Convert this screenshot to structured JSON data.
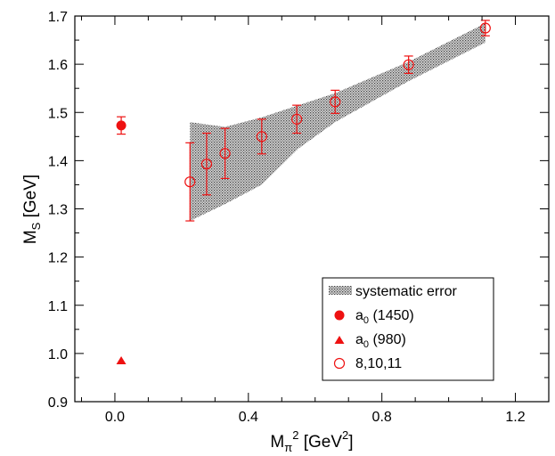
{
  "chart_data": {
    "type": "scatter",
    "xlabel": {
      "main": "M",
      "sub": "π",
      "sup": "2",
      "rest": " [GeV",
      "rest_sup": "2",
      "close": "]"
    },
    "ylabel": {
      "main": "M",
      "sub": "S",
      "rest": " [GeV]"
    },
    "xlim": [
      -0.12,
      1.3
    ],
    "ylim": [
      0.9,
      1.7
    ],
    "x_ticks": [
      0.0,
      0.4,
      0.8,
      1.2
    ],
    "x_tick_labels": [
      "0.0",
      "0.4",
      "0.8",
      "1.2"
    ],
    "y_ticks": [
      0.9,
      1.0,
      1.1,
      1.2,
      1.3,
      1.4,
      1.5,
      1.6,
      1.7
    ],
    "y_tick_labels": [
      "0.9",
      "1.0",
      "1.1",
      "1.2",
      "1.3",
      "1.4",
      "1.5",
      "1.6",
      "1.7"
    ],
    "grid": false,
    "legend_position": "bottom-right",
    "colors": {
      "series": "#ee1111",
      "band": "#888888",
      "axis": "#000000"
    },
    "band": {
      "name": "systematic error",
      "upper": [
        [
          0.225,
          1.48
        ],
        [
          0.33,
          1.47
        ],
        [
          0.44,
          1.49
        ],
        [
          0.55,
          1.515
        ],
        [
          0.66,
          1.54
        ],
        [
          0.88,
          1.605
        ],
        [
          1.11,
          1.685
        ]
      ],
      "lower": [
        [
          0.225,
          1.275
        ],
        [
          0.33,
          1.31
        ],
        [
          0.44,
          1.35
        ],
        [
          0.55,
          1.425
        ],
        [
          0.66,
          1.48
        ],
        [
          0.88,
          1.565
        ],
        [
          1.11,
          1.645
        ]
      ]
    },
    "series": [
      {
        "name": "a",
        "sub": "0",
        "rest": " (1450)",
        "marker": "filled-circle",
        "points": [
          {
            "x": 0.019,
            "y": 1.473,
            "err": 0.018
          }
        ]
      },
      {
        "name": "a",
        "sub": "0",
        "rest": " (980)",
        "marker": "filled-triangle",
        "points": [
          {
            "x": 0.019,
            "y": 0.985,
            "err": 0
          }
        ]
      },
      {
        "name": "8,10,11",
        "marker": "open-circle",
        "points": [
          {
            "x": 0.225,
            "y": 1.356,
            "err": 0.081
          },
          {
            "x": 0.275,
            "y": 1.393,
            "err": 0.064
          },
          {
            "x": 0.33,
            "y": 1.415,
            "err": 0.052
          },
          {
            "x": 0.44,
            "y": 1.45,
            "err": 0.036
          },
          {
            "x": 0.545,
            "y": 1.486,
            "err": 0.029
          },
          {
            "x": 0.66,
            "y": 1.522,
            "err": 0.024
          },
          {
            "x": 0.88,
            "y": 1.599,
            "err": 0.018
          },
          {
            "x": 1.11,
            "y": 1.675,
            "err": 0.016
          }
        ]
      }
    ]
  }
}
